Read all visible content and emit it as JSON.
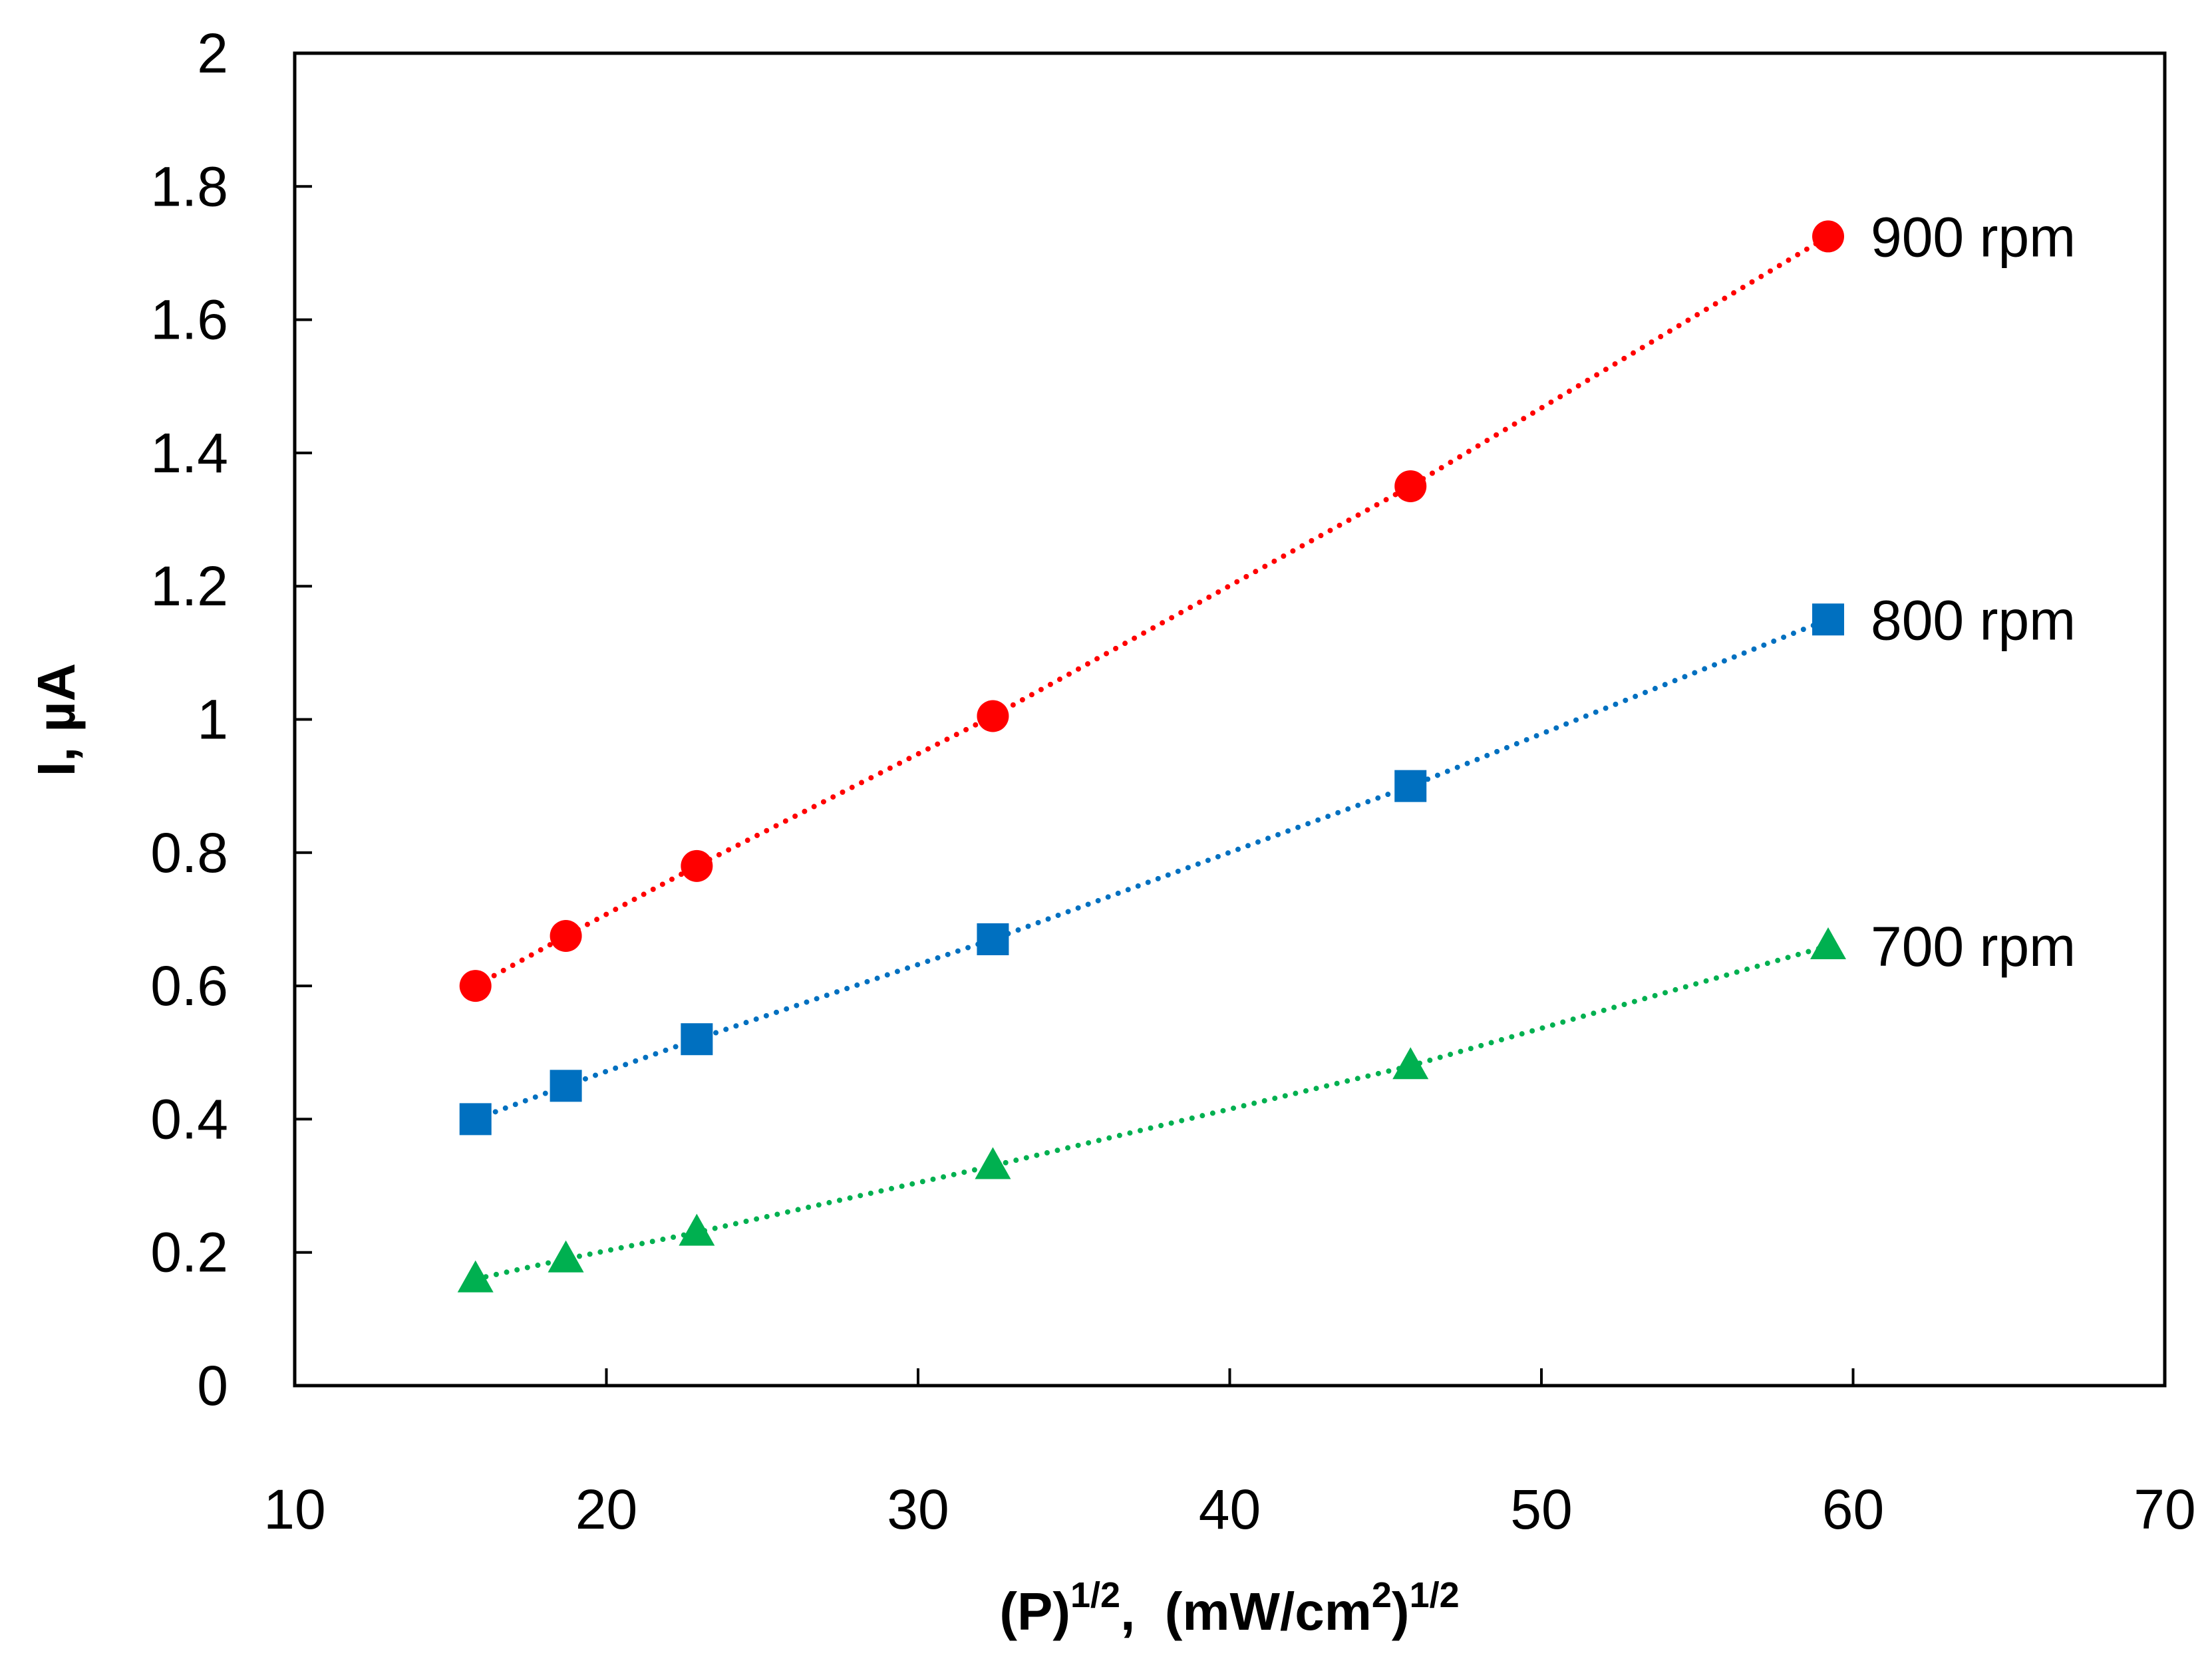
{
  "chart_data": {
    "type": "scatter",
    "title": "",
    "xlabel": {
      "base": "(P)",
      "exp": "1/2",
      "mid": ",  (mW/cm",
      "exp2": "2",
      "close": ")",
      "exp3": "1/2"
    },
    "ylabel": "I, µA",
    "xlim": [
      10,
      70
    ],
    "ylim": [
      0,
      2
    ],
    "x_ticks": [
      "10",
      "20",
      "30",
      "40",
      "50",
      "60",
      "70"
    ],
    "y_ticks": [
      "0",
      "0.2",
      "0.4",
      "0.6",
      "0.8",
      "1",
      "1.2",
      "1.4",
      "1.6",
      "1.8",
      "2"
    ],
    "grid": false,
    "x": [
      15.8,
      18.7,
      22.9,
      32.4,
      45.8,
      59.2
    ],
    "series": [
      {
        "name": "900 rpm",
        "marker": "circle",
        "color": "#ff0000",
        "line_style": "dotted",
        "values": [
          0.6,
          0.675,
          0.78,
          1.005,
          1.35,
          1.725
        ]
      },
      {
        "name": "800 rpm",
        "marker": "square",
        "color": "#0070c0",
        "line_style": "dotted",
        "values": [
          0.4,
          0.45,
          0.52,
          0.67,
          0.9,
          1.15
        ]
      },
      {
        "name": "700 rpm",
        "marker": "triangle",
        "color": "#00b050",
        "line_style": "dotted",
        "values": [
          0.16,
          0.19,
          0.23,
          0.33,
          0.48,
          0.66
        ]
      }
    ]
  }
}
